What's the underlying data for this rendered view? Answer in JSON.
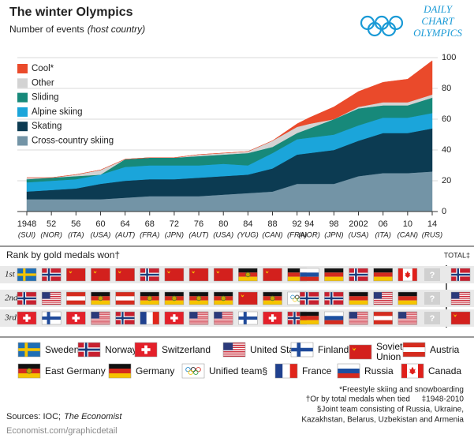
{
  "chart_data": {
    "type": "area",
    "title": "The winter Olympics",
    "subtitle": {
      "text": "Number of events",
      "note": "(host country)"
    },
    "x": [
      1948,
      1952,
      1956,
      1960,
      1964,
      1968,
      1972,
      1976,
      1980,
      1984,
      1988,
      1992,
      1994,
      1998,
      2002,
      2006,
      2010,
      2014
    ],
    "xticks": [
      {
        "value": 1948,
        "label": "1948"
      },
      {
        "value": 1952,
        "label": "52"
      },
      {
        "value": 1956,
        "label": "56"
      },
      {
        "value": 1960,
        "label": "60"
      },
      {
        "value": 1964,
        "label": "64"
      },
      {
        "value": 1968,
        "label": "68"
      },
      {
        "value": 1972,
        "label": "72"
      },
      {
        "value": 1976,
        "label": "76"
      },
      {
        "value": 1980,
        "label": "80"
      },
      {
        "value": 1984,
        "label": "84"
      },
      {
        "value": 1988,
        "label": "88"
      },
      {
        "value": 1992,
        "label": "92"
      },
      {
        "value": 1994,
        "label": "94"
      },
      {
        "value": 1998,
        "label": "98"
      },
      {
        "value": 2002,
        "label": "2002"
      },
      {
        "value": 2006,
        "label": "06"
      },
      {
        "value": 2010,
        "label": "10"
      },
      {
        "value": 2014,
        "label": "14"
      }
    ],
    "hosts": [
      "(SUI)",
      "(NOR)",
      "(ITA)",
      "(USA)",
      "(AUT)",
      "(FRA)",
      "(JPN)",
      "(AUT)",
      "(USA)",
      "(YUG)",
      "(CAN)",
      "(FRA)",
      "(NOR)",
      "(JPN)",
      "(USA)",
      "(ITA)",
      "(CAN)",
      "(RUS)"
    ],
    "xlim": [
      1948,
      2014
    ],
    "ylim": [
      0,
      100
    ],
    "yticks": [
      0,
      20,
      40,
      60,
      80,
      100
    ],
    "grid": true,
    "series": [
      {
        "name": "Cross-country skiing",
        "color": "#7394a6",
        "values": [
          8,
          8,
          8,
          8,
          9,
          10,
          10,
          10,
          11,
          12,
          13,
          18,
          18,
          18,
          23,
          25,
          25,
          26
        ]
      },
      {
        "name": "Skating",
        "color": "#0c3b52",
        "values": [
          5,
          6,
          7,
          10,
          11,
          11,
          11,
          12,
          12,
          12,
          15,
          19,
          20,
          22,
          23,
          26,
          26,
          28
        ]
      },
      {
        "name": "Alpine skiing",
        "color": "#1ba5da",
        "values": [
          6,
          6,
          6,
          6,
          9,
          9,
          9,
          8,
          8,
          6,
          10,
          10,
          10,
          10,
          10,
          10,
          10,
          10
        ]
      },
      {
        "name": "Sliding",
        "color": "#17897a",
        "values": [
          2,
          2,
          2,
          0,
          5,
          5,
          5,
          6,
          6,
          8,
          4,
          4,
          6,
          10,
          11,
          8,
          8,
          10
        ]
      },
      {
        "name": "Other",
        "color": "#d3d3d3",
        "values": [
          1,
          0,
          1,
          3,
          0,
          0,
          0,
          1,
          1,
          1,
          4,
          4,
          3,
          0,
          1,
          2,
          2,
          2
        ]
      },
      {
        "name": "Cool*",
        "color": "#ea4a2b",
        "values": [
          0,
          0,
          0,
          0,
          0,
          0,
          0,
          0,
          0,
          0,
          0,
          2,
          4,
          8,
          10,
          13,
          15,
          22
        ]
      }
    ]
  },
  "logo": [
    "DAILY",
    "CHART",
    "OLYMPICS"
  ],
  "medals": {
    "title": "Rank by gold medals won†",
    "total_header": "TOTAL‡",
    "rows": [
      {
        "label": "1st",
        "cells": [
          "Sweden",
          "Norway",
          "Soviet Union",
          "Soviet Union",
          "Soviet Union",
          "Norway",
          "Soviet Union",
          "Soviet Union",
          "Soviet Union",
          "East Germany",
          "Soviet Union",
          "Germany",
          "Russia",
          "Germany",
          "Norway",
          "Germany",
          "Canada",
          "?"
        ],
        "total": "Norway"
      },
      {
        "label": "2nd",
        "cells": [
          "Norway",
          "United States",
          "Austria",
          "East Germany",
          "Austria",
          "East Germany",
          "East Germany",
          "East Germany",
          "East Germany",
          "Soviet Union",
          "East Germany",
          "Unified team§",
          "Norway",
          "Norway",
          "Germany",
          "United States",
          "Germany",
          "?"
        ],
        "total": "United States"
      },
      {
        "label": "3rd",
        "cells": [
          "Switzerland",
          "Finland",
          "Switzerland",
          "United States",
          "Norway",
          "France",
          "Switzerland",
          "United States",
          "United States",
          "Finland",
          "Switzerland",
          "Norway",
          "Germany",
          "Russia",
          "United States",
          "Austria",
          "United States",
          "?"
        ],
        "total": "Soviet Union"
      }
    ],
    "legend": [
      "Sweden",
      "Norway",
      "Switzerland",
      "United States",
      "Finland",
      "Soviet Union",
      "Austria",
      "East Germany",
      "Germany",
      "Unified team§",
      "France",
      "Russia",
      "Canada"
    ]
  },
  "footnotes": [
    "*Freestyle skiing and snowboarding",
    "†Or by total medals when tied",
    "‡1948-2010",
    "§Joint team consisting of Russia, Ukraine,",
    "Kazakhstan, Belarus, Uzbekistan and Armenia"
  ],
  "sources": {
    "text": "Sources: IOC;",
    "italic": "The Economist"
  },
  "url": "Economist.com/graphicdetail"
}
